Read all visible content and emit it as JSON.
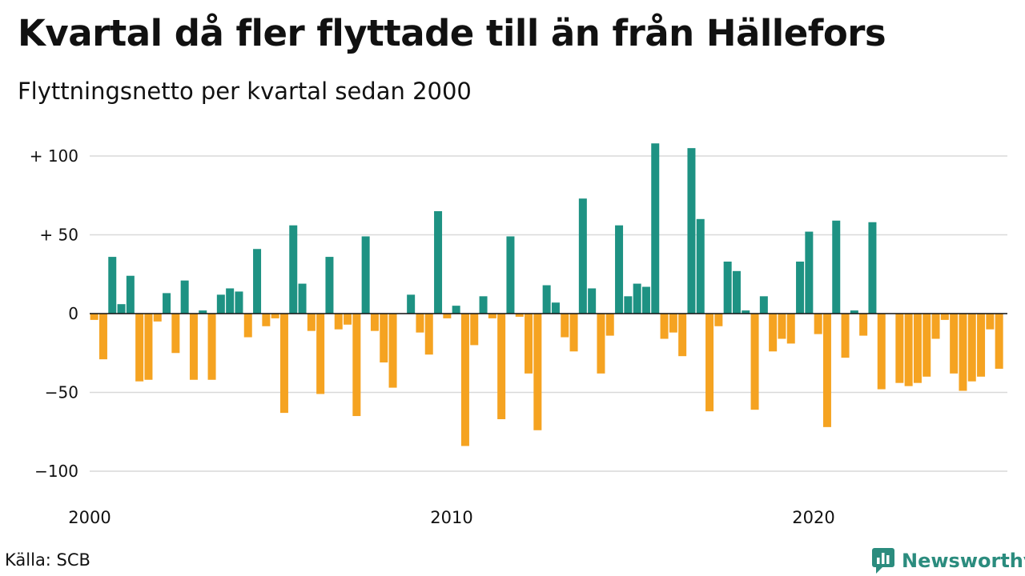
{
  "header": {
    "title": "Kvartal då fler flyttade till än från Hällefors",
    "subtitle": "Flyttningsnetto per kvartal sedan 2000"
  },
  "footer": {
    "source": "Källa: SCB",
    "brand": "Newsworthy",
    "brand_icon": "bar-chart-speech-bubble-icon"
  },
  "chart_data": {
    "type": "bar",
    "title": "Kvartal då fler flyttade till än från Hällefors",
    "subtitle": "Flyttningsnetto per kvartal sedan 2000",
    "xlabel": "",
    "ylabel": "",
    "start_year": 2000,
    "periods_per_year": 4,
    "x_ticks": [
      {
        "year": 2000,
        "label": "2000"
      },
      {
        "year": 2010,
        "label": "2010"
      },
      {
        "year": 2020,
        "label": "2020"
      }
    ],
    "y_ticks": [
      {
        "value": 100,
        "label": "+ 100"
      },
      {
        "value": 50,
        "label": "+  50"
      },
      {
        "value": 0,
        "label": "0"
      },
      {
        "value": -50,
        "label": "−50"
      },
      {
        "value": -100,
        "label": "−100"
      }
    ],
    "ylim": [
      -100,
      100
    ],
    "grid": true,
    "colors": {
      "positive": "#1e9283",
      "negative": "#f5a321",
      "zero_line": "#111111",
      "grid": "#d9d9d9"
    },
    "values": [
      -4,
      -29,
      36,
      6,
      24,
      -43,
      -42,
      -5,
      13,
      -25,
      21,
      -42,
      2,
      -42,
      12,
      16,
      14,
      -15,
      41,
      -8,
      -3,
      -63,
      56,
      19,
      -11,
      -51,
      36,
      -10,
      -7,
      -65,
      49,
      -11,
      -31,
      -47,
      0,
      12,
      -12,
      -26,
      65,
      -3,
      5,
      -84,
      -20,
      11,
      -3,
      -67,
      49,
      -2,
      -38,
      -74,
      18,
      7,
      -15,
      -24,
      73,
      16,
      -38,
      -14,
      56,
      11,
      19,
      17,
      108,
      -16,
      -12,
      -27,
      105,
      60,
      -62,
      -8,
      33,
      27,
      2,
      -61,
      11,
      -24,
      -16,
      -19,
      33,
      52,
      -13,
      -72,
      59,
      -28,
      2,
      -14,
      58,
      -48,
      0,
      -44,
      -46,
      -44,
      -40,
      -16,
      -4,
      -38,
      -49,
      -43,
      -40,
      -10,
      -35
    ]
  }
}
